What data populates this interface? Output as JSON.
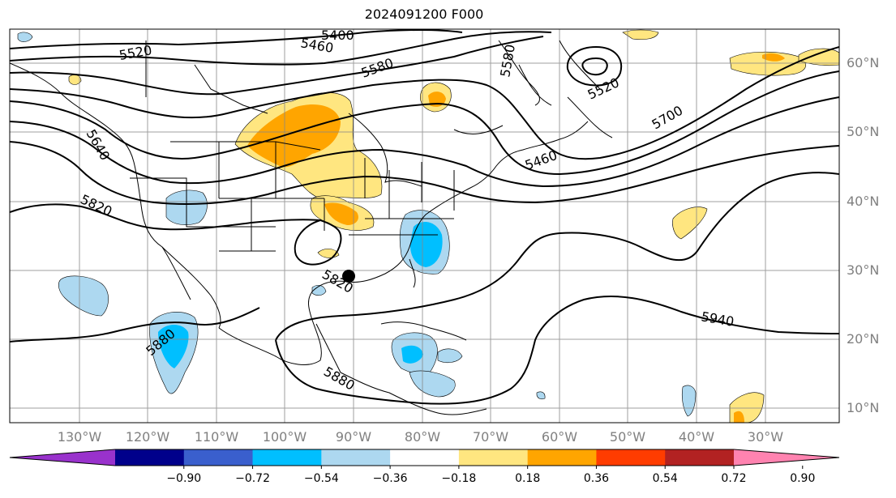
{
  "title": "2024091200 F000",
  "map": {
    "gridline_color": "#888888",
    "longitude_labels": [
      "130°W",
      "120°W",
      "110°W",
      "100°W",
      "90°W",
      "80°W",
      "70°W",
      "60°W",
      "50°W",
      "40°W",
      "30°W"
    ],
    "latitude_labels": [
      "60°N",
      "50°N",
      "40°N",
      "30°N",
      "20°N",
      "10°N"
    ],
    "contour_labels": [
      "5520",
      "5460",
      "5400",
      "5580",
      "5580",
      "5520",
      "5700",
      "5640",
      "5820",
      "5820",
      "5880",
      "5880",
      "5940",
      "5460"
    ],
    "storm_marker": "black-dot"
  },
  "colorbar": {
    "levels": [
      "−0.90",
      "−0.72",
      "−0.54",
      "−0.36",
      "−0.18",
      "0.18",
      "0.36",
      "0.54",
      "0.72",
      "0.90"
    ],
    "colors": [
      "#9932cc",
      "#00008b",
      "#3a5fcd",
      "#00bfff",
      "#add8f0",
      "#ffffff",
      "#ffe680",
      "#ffa500",
      "#ff3c00",
      "#b22222",
      "#ff83b0"
    ],
    "extend": "both"
  }
}
